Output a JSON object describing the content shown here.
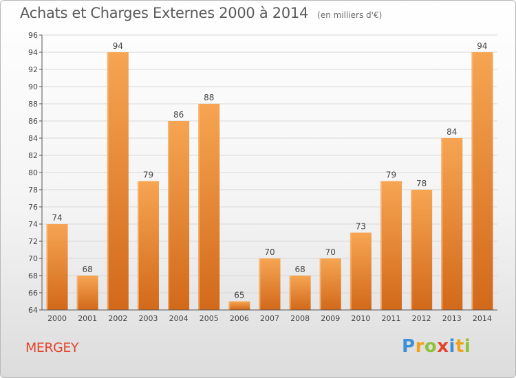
{
  "header": {
    "title": "Achats et Charges Externes 2000 à 2014",
    "subtitle": "(en milliers d'€)"
  },
  "footer": {
    "commune": "MERGEY",
    "logo": {
      "letters": [
        "P",
        "r",
        "o",
        "x",
        "i",
        "t",
        "i"
      ],
      "colors": [
        "#3d8fd6",
        "#f0a21b",
        "#8fc23b",
        "#e2442b",
        "#3d8fd6",
        "#f0a21b",
        "#8fc23b"
      ]
    }
  },
  "colors": {
    "bar_light": "#f6a552",
    "bar_dark": "#d2691a",
    "axis": "#555555",
    "grid": "#d8d8d8"
  },
  "chart_data": {
    "type": "bar",
    "title": "Achats et Charges Externes 2000 à 2014",
    "subtitle": "(en milliers d'€)",
    "categories": [
      "2000",
      "2001",
      "2002",
      "2003",
      "2004",
      "2005",
      "2006",
      "2007",
      "2008",
      "2009",
      "2010",
      "2011",
      "2012",
      "2013",
      "2014"
    ],
    "values": [
      74,
      68,
      94,
      79,
      86,
      88,
      65,
      70,
      68,
      70,
      73,
      79,
      78,
      84,
      94
    ],
    "ylim": [
      64,
      96
    ],
    "yticks": [
      64,
      66,
      68,
      70,
      72,
      74,
      76,
      78,
      80,
      82,
      84,
      86,
      88,
      90,
      92,
      94,
      96
    ],
    "grid": true,
    "xlabel": "",
    "ylabel": ""
  }
}
